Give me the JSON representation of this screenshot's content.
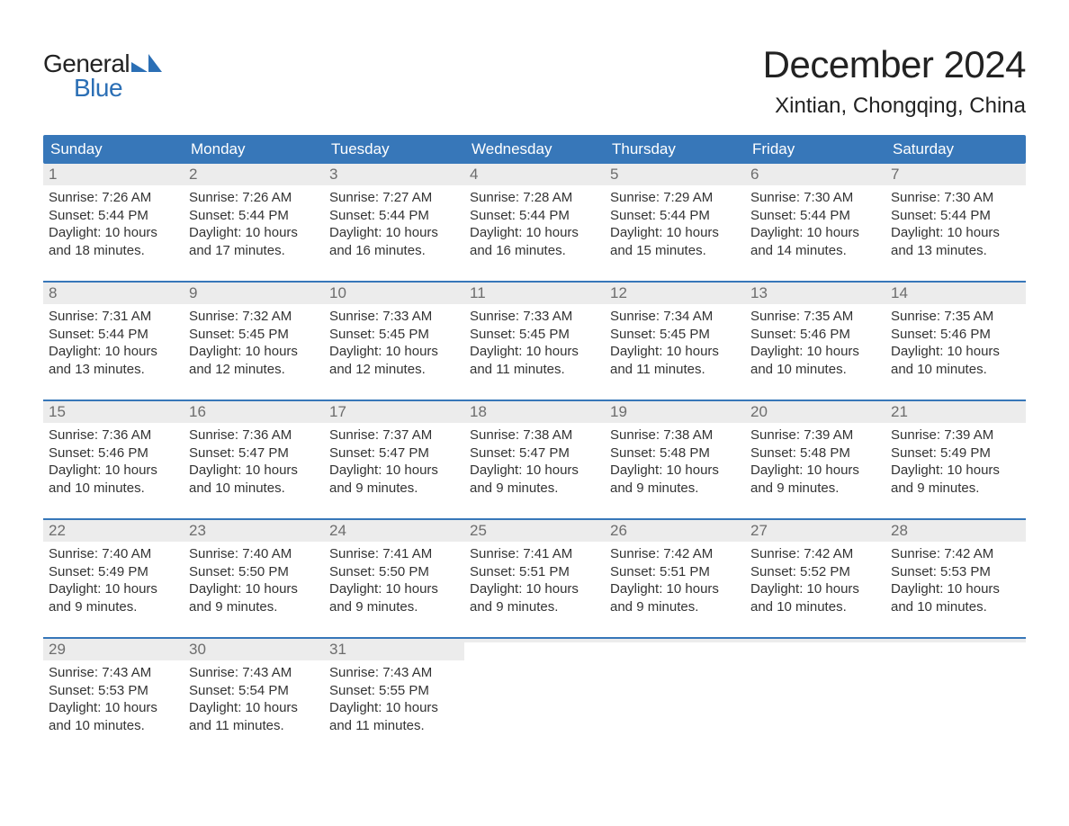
{
  "logo": {
    "word1": "General",
    "word2": "Blue",
    "accent_color": "#2b6fb5"
  },
  "title": "December 2024",
  "location": "Xintian, Chongqing, China",
  "styling": {
    "page_bg": "#ffffff",
    "header_bg": "#3777b9",
    "header_text_color": "#ffffff",
    "daynum_bg": "#ececec",
    "daynum_color": "#6d6d6d",
    "body_text_color": "#333333",
    "week_divider_color": "#3777b9",
    "title_fontsize": 42,
    "location_fontsize": 24,
    "weekday_fontsize": 17,
    "daynum_fontsize": 17,
    "info_fontsize": 15
  },
  "weekdays": [
    "Sunday",
    "Monday",
    "Tuesday",
    "Wednesday",
    "Thursday",
    "Friday",
    "Saturday"
  ],
  "weeks": [
    [
      {
        "n": "1",
        "sunrise": "Sunrise: 7:26 AM",
        "sunset": "Sunset: 5:44 PM",
        "d1": "Daylight: 10 hours",
        "d2": "and 18 minutes."
      },
      {
        "n": "2",
        "sunrise": "Sunrise: 7:26 AM",
        "sunset": "Sunset: 5:44 PM",
        "d1": "Daylight: 10 hours",
        "d2": "and 17 minutes."
      },
      {
        "n": "3",
        "sunrise": "Sunrise: 7:27 AM",
        "sunset": "Sunset: 5:44 PM",
        "d1": "Daylight: 10 hours",
        "d2": "and 16 minutes."
      },
      {
        "n": "4",
        "sunrise": "Sunrise: 7:28 AM",
        "sunset": "Sunset: 5:44 PM",
        "d1": "Daylight: 10 hours",
        "d2": "and 16 minutes."
      },
      {
        "n": "5",
        "sunrise": "Sunrise: 7:29 AM",
        "sunset": "Sunset: 5:44 PM",
        "d1": "Daylight: 10 hours",
        "d2": "and 15 minutes."
      },
      {
        "n": "6",
        "sunrise": "Sunrise: 7:30 AM",
        "sunset": "Sunset: 5:44 PM",
        "d1": "Daylight: 10 hours",
        "d2": "and 14 minutes."
      },
      {
        "n": "7",
        "sunrise": "Sunrise: 7:30 AM",
        "sunset": "Sunset: 5:44 PM",
        "d1": "Daylight: 10 hours",
        "d2": "and 13 minutes."
      }
    ],
    [
      {
        "n": "8",
        "sunrise": "Sunrise: 7:31 AM",
        "sunset": "Sunset: 5:44 PM",
        "d1": "Daylight: 10 hours",
        "d2": "and 13 minutes."
      },
      {
        "n": "9",
        "sunrise": "Sunrise: 7:32 AM",
        "sunset": "Sunset: 5:45 PM",
        "d1": "Daylight: 10 hours",
        "d2": "and 12 minutes."
      },
      {
        "n": "10",
        "sunrise": "Sunrise: 7:33 AM",
        "sunset": "Sunset: 5:45 PM",
        "d1": "Daylight: 10 hours",
        "d2": "and 12 minutes."
      },
      {
        "n": "11",
        "sunrise": "Sunrise: 7:33 AM",
        "sunset": "Sunset: 5:45 PM",
        "d1": "Daylight: 10 hours",
        "d2": "and 11 minutes."
      },
      {
        "n": "12",
        "sunrise": "Sunrise: 7:34 AM",
        "sunset": "Sunset: 5:45 PM",
        "d1": "Daylight: 10 hours",
        "d2": "and 11 minutes."
      },
      {
        "n": "13",
        "sunrise": "Sunrise: 7:35 AM",
        "sunset": "Sunset: 5:46 PM",
        "d1": "Daylight: 10 hours",
        "d2": "and 10 minutes."
      },
      {
        "n": "14",
        "sunrise": "Sunrise: 7:35 AM",
        "sunset": "Sunset: 5:46 PM",
        "d1": "Daylight: 10 hours",
        "d2": "and 10 minutes."
      }
    ],
    [
      {
        "n": "15",
        "sunrise": "Sunrise: 7:36 AM",
        "sunset": "Sunset: 5:46 PM",
        "d1": "Daylight: 10 hours",
        "d2": "and 10 minutes."
      },
      {
        "n": "16",
        "sunrise": "Sunrise: 7:36 AM",
        "sunset": "Sunset: 5:47 PM",
        "d1": "Daylight: 10 hours",
        "d2": "and 10 minutes."
      },
      {
        "n": "17",
        "sunrise": "Sunrise: 7:37 AM",
        "sunset": "Sunset: 5:47 PM",
        "d1": "Daylight: 10 hours",
        "d2": "and 9 minutes."
      },
      {
        "n": "18",
        "sunrise": "Sunrise: 7:38 AM",
        "sunset": "Sunset: 5:47 PM",
        "d1": "Daylight: 10 hours",
        "d2": "and 9 minutes."
      },
      {
        "n": "19",
        "sunrise": "Sunrise: 7:38 AM",
        "sunset": "Sunset: 5:48 PM",
        "d1": "Daylight: 10 hours",
        "d2": "and 9 minutes."
      },
      {
        "n": "20",
        "sunrise": "Sunrise: 7:39 AM",
        "sunset": "Sunset: 5:48 PM",
        "d1": "Daylight: 10 hours",
        "d2": "and 9 minutes."
      },
      {
        "n": "21",
        "sunrise": "Sunrise: 7:39 AM",
        "sunset": "Sunset: 5:49 PM",
        "d1": "Daylight: 10 hours",
        "d2": "and 9 minutes."
      }
    ],
    [
      {
        "n": "22",
        "sunrise": "Sunrise: 7:40 AM",
        "sunset": "Sunset: 5:49 PM",
        "d1": "Daylight: 10 hours",
        "d2": "and 9 minutes."
      },
      {
        "n": "23",
        "sunrise": "Sunrise: 7:40 AM",
        "sunset": "Sunset: 5:50 PM",
        "d1": "Daylight: 10 hours",
        "d2": "and 9 minutes."
      },
      {
        "n": "24",
        "sunrise": "Sunrise: 7:41 AM",
        "sunset": "Sunset: 5:50 PM",
        "d1": "Daylight: 10 hours",
        "d2": "and 9 minutes."
      },
      {
        "n": "25",
        "sunrise": "Sunrise: 7:41 AM",
        "sunset": "Sunset: 5:51 PM",
        "d1": "Daylight: 10 hours",
        "d2": "and 9 minutes."
      },
      {
        "n": "26",
        "sunrise": "Sunrise: 7:42 AM",
        "sunset": "Sunset: 5:51 PM",
        "d1": "Daylight: 10 hours",
        "d2": "and 9 minutes."
      },
      {
        "n": "27",
        "sunrise": "Sunrise: 7:42 AM",
        "sunset": "Sunset: 5:52 PM",
        "d1": "Daylight: 10 hours",
        "d2": "and 10 minutes."
      },
      {
        "n": "28",
        "sunrise": "Sunrise: 7:42 AM",
        "sunset": "Sunset: 5:53 PM",
        "d1": "Daylight: 10 hours",
        "d2": "and 10 minutes."
      }
    ],
    [
      {
        "n": "29",
        "sunrise": "Sunrise: 7:43 AM",
        "sunset": "Sunset: 5:53 PM",
        "d1": "Daylight: 10 hours",
        "d2": "and 10 minutes."
      },
      {
        "n": "30",
        "sunrise": "Sunrise: 7:43 AM",
        "sunset": "Sunset: 5:54 PM",
        "d1": "Daylight: 10 hours",
        "d2": "and 11 minutes."
      },
      {
        "n": "31",
        "sunrise": "Sunrise: 7:43 AM",
        "sunset": "Sunset: 5:55 PM",
        "d1": "Daylight: 10 hours",
        "d2": "and 11 minutes."
      },
      {
        "empty": true
      },
      {
        "empty": true
      },
      {
        "empty": true
      },
      {
        "empty": true
      }
    ]
  ]
}
